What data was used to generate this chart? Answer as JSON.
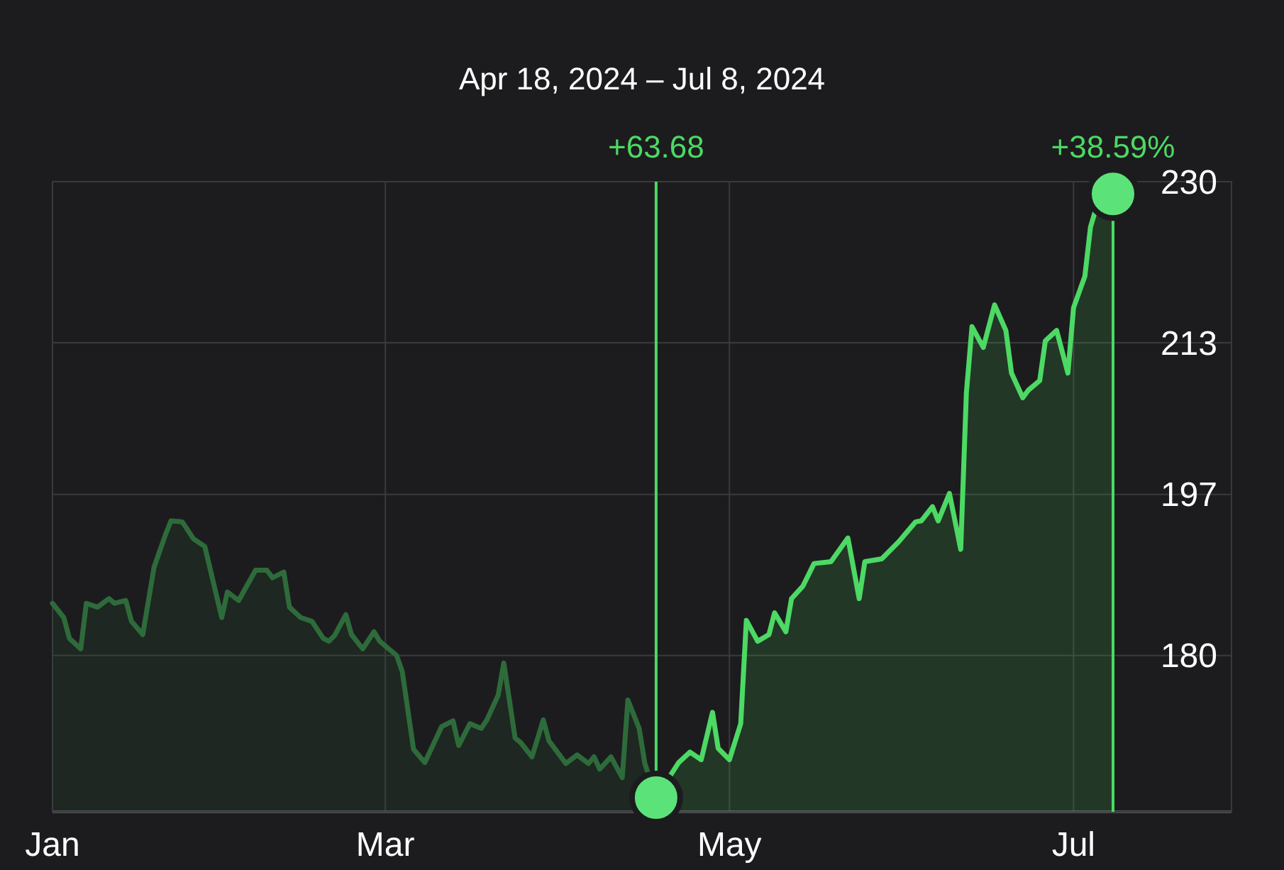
{
  "chart_data": {
    "type": "area",
    "title": "Apr 18, 2024 – Jul 8, 2024",
    "xlim": [
      "2024-01-02",
      "2024-07-29"
    ],
    "xticks": [
      {
        "value": "2024-01-02",
        "label": "Jan"
      },
      {
        "value": "2024-03-01",
        "label": "Mar"
      },
      {
        "value": "2024-05-01",
        "label": "May"
      },
      {
        "value": "2024-07-01",
        "label": "Jul"
      }
    ],
    "ylim": [
      163.5,
      230
    ],
    "yticks": [
      180,
      197,
      213,
      230
    ],
    "grid": true,
    "ref_lines": [
      {
        "axis": "x",
        "value": "2024-04-18",
        "label": "+63.68",
        "color": "#4cd964"
      },
      {
        "axis": "x",
        "value": "2024-07-08",
        "label": "+38.59%",
        "color": "#4cd964"
      }
    ],
    "series": [
      {
        "color": "#2e6b3b",
        "x": [
          "2024-01-02",
          "2024-01-04",
          "2024-01-05",
          "2024-01-07",
          "2024-01-08",
          "2024-01-10",
          "2024-01-12",
          "2024-01-13",
          "2024-01-15",
          "2024-01-16",
          "2024-01-18",
          "2024-01-20",
          "2024-01-22",
          "2024-01-23",
          "2024-01-25",
          "2024-01-27",
          "2024-01-29",
          "2024-02-01",
          "2024-02-02",
          "2024-02-04",
          "2024-02-07",
          "2024-02-09",
          "2024-02-10",
          "2024-02-12",
          "2024-02-13",
          "2024-02-15",
          "2024-02-17",
          "2024-02-19",
          "2024-02-20",
          "2024-02-21",
          "2024-02-23",
          "2024-02-24",
          "2024-02-26",
          "2024-02-28",
          "2024-02-29",
          "2024-03-03",
          "2024-03-04",
          "2024-03-06",
          "2024-03-08",
          "2024-03-11",
          "2024-03-13",
          "2024-03-14",
          "2024-03-16",
          "2024-03-18",
          "2024-03-19",
          "2024-03-21",
          "2024-03-22",
          "2024-03-24",
          "2024-03-25",
          "2024-03-27",
          "2024-03-29",
          "2024-03-30",
          "2024-04-02",
          "2024-04-04",
          "2024-04-06",
          "2024-04-07",
          "2024-04-08",
          "2024-04-10",
          "2024-04-12",
          "2024-04-13",
          "2024-04-15",
          "2024-04-16",
          "2024-04-18"
        ],
        "values": [
          185.5,
          184.0,
          181.8,
          180.7,
          185.5,
          185.1,
          186.0,
          185.5,
          185.8,
          183.6,
          182.2,
          189.3,
          192.7,
          194.2,
          194.1,
          192.3,
          191.5,
          184.0,
          186.7,
          185.8,
          189.0,
          189.0,
          188.2,
          188.8,
          185.1,
          184.0,
          183.6,
          181.8,
          181.5,
          182.1,
          184.3,
          182.2,
          180.7,
          182.5,
          181.5,
          180.0,
          178.3,
          170.1,
          168.7,
          172.5,
          173.1,
          170.5,
          172.8,
          172.3,
          173.2,
          175.8,
          179.2,
          171.3,
          170.8,
          169.3,
          173.2,
          171.0,
          168.6,
          169.5,
          168.6,
          169.3,
          168.0,
          169.3,
          167.1,
          175.3,
          172.3,
          168.6,
          165.0
        ]
      },
      {
        "color": "#4cd964",
        "x": [
          "2024-04-18",
          "2024-04-22",
          "2024-04-24",
          "2024-04-26",
          "2024-04-28",
          "2024-04-29",
          "2024-05-01",
          "2024-05-03",
          "2024-05-04",
          "2024-05-06",
          "2024-05-08",
          "2024-05-09",
          "2024-05-11",
          "2024-05-12",
          "2024-05-14",
          "2024-05-16",
          "2024-05-19",
          "2024-05-22",
          "2024-05-24",
          "2024-05-25",
          "2024-05-28",
          "2024-05-31",
          "2024-06-03",
          "2024-06-04",
          "2024-06-06",
          "2024-06-07",
          "2024-06-09",
          "2024-06-11",
          "2024-06-12",
          "2024-06-13",
          "2024-06-15",
          "2024-06-17",
          "2024-06-19",
          "2024-06-20",
          "2024-06-22",
          "2024-06-23",
          "2024-06-25",
          "2024-06-26",
          "2024-06-28",
          "2024-06-30",
          "2024-07-01",
          "2024-07-03",
          "2024-07-04",
          "2024-07-05",
          "2024-07-08"
        ],
        "values": [
          165.0,
          168.7,
          169.8,
          169.0,
          174.0,
          170.2,
          169.0,
          172.8,
          183.7,
          181.5,
          182.2,
          184.5,
          182.5,
          186.0,
          187.3,
          189.7,
          189.9,
          192.4,
          186.0,
          189.9,
          190.2,
          192.0,
          194.1,
          194.2,
          195.7,
          194.2,
          197.1,
          191.2,
          207.7,
          214.7,
          212.5,
          217.0,
          214.3,
          209.8,
          207.2,
          208.0,
          209.0,
          213.2,
          214.3,
          209.8,
          216.7,
          220.0,
          225.2,
          227.2,
          228.7
        ]
      },
      {
        "type": "scatter",
        "color": "#5be37a",
        "marker": "circle",
        "x": [
          "2024-04-18",
          "2024-07-08"
        ],
        "values": [
          165.0,
          228.7
        ]
      }
    ]
  }
}
